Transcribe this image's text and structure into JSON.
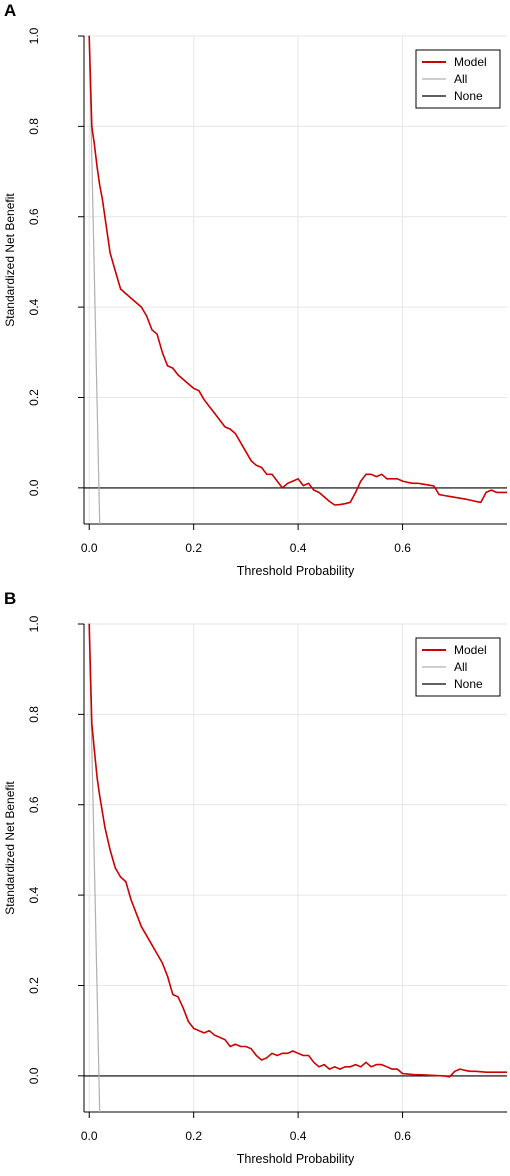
{
  "colors": {
    "model": "#cc0000",
    "all": "#b0b0b0",
    "none": "#000000",
    "grid": "#e6e6e6"
  },
  "chart_data": [
    {
      "panel": "A",
      "type": "line",
      "xlabel": "Threshold Probability",
      "ylabel": "Standardized Net Benefit",
      "xlim": [
        -0.01,
        0.8
      ],
      "ylim": [
        -0.08,
        1.0
      ],
      "xticks": [
        "0.0",
        "0.2",
        "0.4",
        "0.6"
      ],
      "yticks": [
        "0.0",
        "0.2",
        "0.4",
        "0.6",
        "0.8",
        "1.0"
      ],
      "grid": true,
      "legend": {
        "position": "top-right",
        "entries": [
          "Model",
          "All",
          "None"
        ]
      },
      "series": [
        {
          "name": "Model",
          "x": [
            0.0,
            0.005,
            0.01,
            0.015,
            0.02,
            0.025,
            0.03,
            0.04,
            0.045,
            0.05,
            0.06,
            0.07,
            0.08,
            0.09,
            0.1,
            0.11,
            0.12,
            0.13,
            0.14,
            0.145,
            0.15,
            0.16,
            0.17,
            0.18,
            0.19,
            0.2,
            0.21,
            0.22,
            0.23,
            0.24,
            0.25,
            0.26,
            0.27,
            0.28,
            0.29,
            0.3,
            0.31,
            0.32,
            0.33,
            0.34,
            0.35,
            0.36,
            0.37,
            0.38,
            0.39,
            0.4,
            0.41,
            0.42,
            0.43,
            0.44,
            0.45,
            0.46,
            0.47,
            0.48,
            0.49,
            0.5,
            0.51,
            0.52,
            0.53,
            0.54,
            0.55,
            0.56,
            0.57,
            0.58,
            0.59,
            0.6,
            0.61,
            0.62,
            0.63,
            0.64,
            0.65,
            0.66,
            0.67,
            0.68,
            0.69,
            0.7,
            0.71,
            0.72,
            0.73,
            0.74,
            0.75,
            0.76,
            0.77,
            0.78,
            0.79,
            0.8
          ],
          "y": [
            1.0,
            0.8,
            0.76,
            0.71,
            0.67,
            0.64,
            0.6,
            0.52,
            0.5,
            0.48,
            0.44,
            0.43,
            0.42,
            0.41,
            0.4,
            0.38,
            0.35,
            0.34,
            0.3,
            0.285,
            0.27,
            0.265,
            0.25,
            0.24,
            0.23,
            0.22,
            0.215,
            0.195,
            0.18,
            0.165,
            0.15,
            0.135,
            0.13,
            0.12,
            0.1,
            0.08,
            0.06,
            0.05,
            0.045,
            0.03,
            0.03,
            0.015,
            0.0,
            0.01,
            0.015,
            0.02,
            0.005,
            0.01,
            -0.005,
            -0.01,
            -0.02,
            -0.03,
            -0.038,
            -0.037,
            -0.035,
            -0.032,
            -0.01,
            0.015,
            0.03,
            0.03,
            0.025,
            0.03,
            0.02,
            0.02,
            0.02,
            0.015,
            0.012,
            0.01,
            0.01,
            0.008,
            0.006,
            0.004,
            -0.015,
            -0.017,
            -0.019,
            -0.021,
            -0.023,
            -0.025,
            -0.027,
            -0.03,
            -0.032,
            -0.01,
            -0.005,
            -0.01,
            -0.01,
            -0.01
          ]
        },
        {
          "name": "All",
          "x": [
            0.0,
            0.02
          ],
          "y": [
            1.0,
            -0.08
          ]
        },
        {
          "name": "None",
          "x": [
            -0.01,
            0.8
          ],
          "y": [
            0.0,
            0.0
          ]
        }
      ]
    },
    {
      "panel": "B",
      "type": "line",
      "xlabel": "Threshold Probability",
      "ylabel": "Standardized Net Benefit",
      "xlim": [
        -0.01,
        0.8
      ],
      "ylim": [
        -0.08,
        1.0
      ],
      "xticks": [
        "0.0",
        "0.2",
        "0.4",
        "0.6"
      ],
      "yticks": [
        "0.0",
        "0.2",
        "0.4",
        "0.6",
        "0.8",
        "1.0"
      ],
      "grid": true,
      "legend": {
        "position": "top-right",
        "entries": [
          "Model",
          "All",
          "None"
        ]
      },
      "series": [
        {
          "name": "Model",
          "x": [
            0.0,
            0.005,
            0.01,
            0.015,
            0.02,
            0.03,
            0.04,
            0.05,
            0.06,
            0.07,
            0.08,
            0.09,
            0.1,
            0.11,
            0.12,
            0.13,
            0.14,
            0.15,
            0.16,
            0.17,
            0.18,
            0.19,
            0.2,
            0.21,
            0.22,
            0.23,
            0.24,
            0.25,
            0.26,
            0.27,
            0.28,
            0.29,
            0.3,
            0.31,
            0.32,
            0.33,
            0.34,
            0.35,
            0.36,
            0.37,
            0.38,
            0.39,
            0.4,
            0.41,
            0.42,
            0.43,
            0.44,
            0.45,
            0.46,
            0.47,
            0.48,
            0.49,
            0.5,
            0.51,
            0.52,
            0.53,
            0.54,
            0.55,
            0.56,
            0.57,
            0.58,
            0.59,
            0.6,
            0.62,
            0.64,
            0.66,
            0.68,
            0.69,
            0.7,
            0.71,
            0.72,
            0.73,
            0.74,
            0.76,
            0.78,
            0.8
          ],
          "y": [
            1.0,
            0.78,
            0.72,
            0.66,
            0.62,
            0.55,
            0.5,
            0.46,
            0.44,
            0.43,
            0.39,
            0.36,
            0.33,
            0.31,
            0.29,
            0.27,
            0.25,
            0.22,
            0.18,
            0.175,
            0.15,
            0.12,
            0.105,
            0.1,
            0.095,
            0.1,
            0.09,
            0.085,
            0.08,
            0.065,
            0.07,
            0.065,
            0.065,
            0.06,
            0.045,
            0.035,
            0.04,
            0.05,
            0.045,
            0.05,
            0.05,
            0.055,
            0.05,
            0.045,
            0.045,
            0.03,
            0.02,
            0.025,
            0.015,
            0.02,
            0.015,
            0.02,
            0.02,
            0.025,
            0.02,
            0.03,
            0.02,
            0.025,
            0.025,
            0.02,
            0.015,
            0.015,
            0.005,
            0.003,
            0.002,
            0.001,
            0.0,
            -0.002,
            0.01,
            0.015,
            0.012,
            0.01,
            0.01,
            0.008,
            0.008,
            0.008
          ]
        },
        {
          "name": "All",
          "x": [
            0.0,
            0.02
          ],
          "y": [
            1.0,
            -0.08
          ]
        },
        {
          "name": "None",
          "x": [
            -0.01,
            0.8
          ],
          "y": [
            0.0,
            0.0
          ]
        }
      ]
    }
  ]
}
